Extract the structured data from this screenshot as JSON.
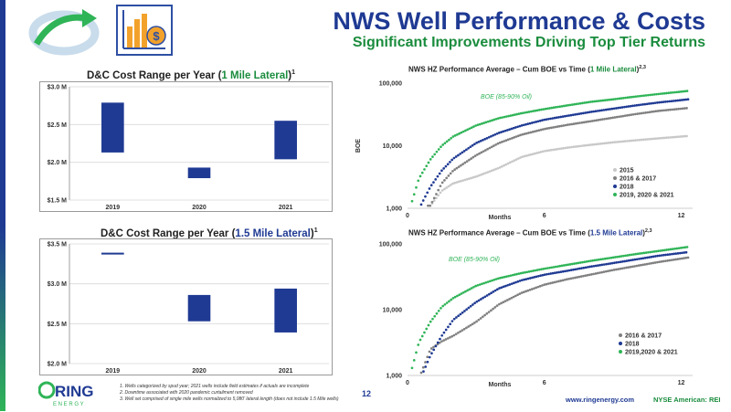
{
  "header": {
    "title": "NWS Well Performance & Costs",
    "subtitle": "Significant Improvements Driving Top Tier Returns"
  },
  "brand": {
    "navy": "#1f3a93",
    "green": "#1a8c3d",
    "bright_green": "#2fb457",
    "gray": "#808080",
    "light_gray": "#c8c8c8"
  },
  "footer": {
    "logo_text": "RING",
    "logo_subtext": "E N E R G Y",
    "notes": [
      "1.    Wells categorized by spud year; 2021 wells include field estimates if actuals are incomplete",
      "2.    Downtime associated with 2020 pandemic curtailment removed",
      "3.    Well set comprised of single mile wells normalized to 5,080' lateral length (does not include 1.5 Mile wells)"
    ],
    "page_number": "12",
    "website": "www.ringenergy.com",
    "exchange": "NYSE American: REI"
  },
  "chart_data": [
    {
      "type": "bar",
      "title_pre": "D&C Cost Range per Year (",
      "title_hl": "1 Mile Lateral",
      "title_post": ")",
      "title_sup": "1",
      "categories": [
        "2019",
        "2020",
        "2021"
      ],
      "ranges": [
        [
          2.13,
          2.79
        ],
        [
          1.79,
          1.93
        ],
        [
          2.04,
          2.55
        ]
      ],
      "ytick_labels": [
        "$1.5 M",
        "$2.0 M",
        "$2.5 M",
        "$3.0 M"
      ],
      "yticks": [
        1.5,
        2.0,
        2.5,
        3.0
      ],
      "ylim": [
        1.5,
        3.0
      ],
      "color": "#1f3a93"
    },
    {
      "type": "bar",
      "title_pre": "D&C Cost Range per Year (",
      "title_hl": "1.5 Mile Lateral",
      "title_post": ")",
      "title_sup": "1",
      "categories": [
        "2019",
        "2020",
        "2021"
      ],
      "ranges": [
        [
          3.37,
          3.39
        ],
        [
          2.53,
          2.86
        ],
        [
          2.39,
          2.94
        ]
      ],
      "ytick_labels": [
        "$2.0 M",
        "$2.5 M",
        "$3.0 M",
        "$3.5 M"
      ],
      "yticks": [
        2.0,
        2.5,
        3.0,
        3.5
      ],
      "ylim": [
        2.0,
        3.5
      ],
      "color": "#1f3a93"
    },
    {
      "type": "scatter",
      "title_pre": "NWS HZ Performance Average – Cum BOE vs Time (",
      "title_hl": "1 Mile Lateral",
      "title_post": ")",
      "title_sup": "2,3",
      "ylabel": "BOE",
      "xlabel": "Months",
      "ytick_labels": [
        "1,000",
        "10,000",
        "100,000"
      ],
      "yticks": [
        1000,
        10000,
        100000
      ],
      "xtick_labels": [
        "0",
        "6",
        "12"
      ],
      "xticks": [
        0,
        6,
        12
      ],
      "xlim": [
        0,
        12.5
      ],
      "ylim": [
        1000,
        100000
      ],
      "yscale": "log",
      "annotation": "BOE (85-90% Oil)",
      "legend_position": "right",
      "series": [
        {
          "name": "2015",
          "color": "#c8c8c8",
          "start": 0.9,
          "points": [
            [
              1,
              1100
            ],
            [
              1.5,
              1900
            ],
            [
              2,
              2500
            ],
            [
              3,
              3200
            ],
            [
              4,
              4400
            ],
            [
              5,
              6600
            ],
            [
              6,
              8200
            ],
            [
              7,
              9300
            ],
            [
              8,
              10300
            ],
            [
              9,
              11300
            ],
            [
              10,
              12200
            ],
            [
              11,
              13100
            ],
            [
              12.3,
              14300
            ]
          ]
        },
        {
          "name": "2016 & 2017",
          "color": "#808080",
          "start": 0.9,
          "points": [
            [
              1,
              1100
            ],
            [
              1.5,
              2500
            ],
            [
              2,
              4000
            ],
            [
              3,
              7000
            ],
            [
              4,
              11000
            ],
            [
              5,
              15000
            ],
            [
              6,
              18500
            ],
            [
              7,
              21500
            ],
            [
              8,
              24500
            ],
            [
              9,
              28000
            ],
            [
              10,
              32000
            ],
            [
              11,
              36000
            ],
            [
              12.3,
              40000
            ]
          ]
        },
        {
          "name": "2018",
          "color": "#1f3a93",
          "start": 0.6,
          "points": [
            [
              0.6,
              1150
            ],
            [
              1,
              2200
            ],
            [
              1.5,
              4000
            ],
            [
              2,
              6200
            ],
            [
              3,
              11000
            ],
            [
              4,
              16000
            ],
            [
              5,
              21000
            ],
            [
              6,
              26000
            ],
            [
              7,
              30000
            ],
            [
              8,
              34500
            ],
            [
              9,
              39000
            ],
            [
              10,
              44000
            ],
            [
              11,
              49000
            ],
            [
              12.3,
              55000
            ]
          ]
        },
        {
          "name": "2019, 2020 & 2021",
          "color": "#2fb457",
          "start": 0.2,
          "points": [
            [
              0.2,
              1300
            ],
            [
              0.5,
              3000
            ],
            [
              1,
              6000
            ],
            [
              1.5,
              10000
            ],
            [
              2,
              14000
            ],
            [
              3,
              21000
            ],
            [
              4,
              27500
            ],
            [
              5,
              33000
            ],
            [
              6,
              38500
            ],
            [
              7,
              44000
            ],
            [
              8,
              50000
            ],
            [
              9,
              55000
            ],
            [
              10,
              61000
            ],
            [
              11,
              67000
            ],
            [
              12.3,
              75000
            ]
          ]
        }
      ]
    },
    {
      "type": "scatter",
      "title_pre": "NWS HZ Performance Average – Cum BOE vs Time (",
      "title_hl": "1.5 Mile Lateral",
      "title_post": ")",
      "title_sup": "2,3",
      "xlabel": "Months",
      "ytick_labels": [
        "1,000",
        "10,000",
        "100,000"
      ],
      "yticks": [
        1000,
        10000,
        100000
      ],
      "xtick_labels": [
        "0",
        "6",
        "12"
      ],
      "xticks": [
        0,
        6,
        12
      ],
      "xlim": [
        0,
        12.5
      ],
      "ylim": [
        1000,
        100000
      ],
      "yscale": "log",
      "annotation": "BOE (85-90% Oil)",
      "legend_position": "right",
      "series": [
        {
          "name": "2016 & 2017",
          "color": "#808080",
          "start": 0.6,
          "points": [
            [
              0.6,
              1100
            ],
            [
              1,
              2500
            ],
            [
              1.5,
              3300
            ],
            [
              2,
              4000
            ],
            [
              3,
              6500
            ],
            [
              4,
              12000
            ],
            [
              5,
              18000
            ],
            [
              6,
              24000
            ],
            [
              7,
              29000
            ],
            [
              8,
              34000
            ],
            [
              9,
              40000
            ],
            [
              10,
              46000
            ],
            [
              11,
              53000
            ],
            [
              12.3,
              62000
            ]
          ]
        },
        {
          "name": "2018",
          "color": "#1f3a93",
          "start": 0.7,
          "points": [
            [
              0.7,
              1150
            ],
            [
              1,
              2000
            ],
            [
              1.5,
              4000
            ],
            [
              2,
              7000
            ],
            [
              3,
              13000
            ],
            [
              4,
              21000
            ],
            [
              5,
              28000
            ],
            [
              6,
              34000
            ],
            [
              7,
              39000
            ],
            [
              8,
              45000
            ],
            [
              9,
              51000
            ],
            [
              10,
              58000
            ],
            [
              11,
              66000
            ],
            [
              12.3,
              75000
            ]
          ]
        },
        {
          "name": "2019,2020 & 2021",
          "color": "#2fb457",
          "start": 0.2,
          "points": [
            [
              0.2,
              1300
            ],
            [
              0.5,
              3200
            ],
            [
              1,
              6500
            ],
            [
              1.5,
              11000
            ],
            [
              2,
              15000
            ],
            [
              3,
              23000
            ],
            [
              4,
              30000
            ],
            [
              5,
              36000
            ],
            [
              6,
              42000
            ],
            [
              7,
              48000
            ],
            [
              8,
              55000
            ],
            [
              9,
              62000
            ],
            [
              10,
              70000
            ],
            [
              11,
              78000
            ],
            [
              12.3,
              90000
            ]
          ]
        }
      ]
    }
  ]
}
